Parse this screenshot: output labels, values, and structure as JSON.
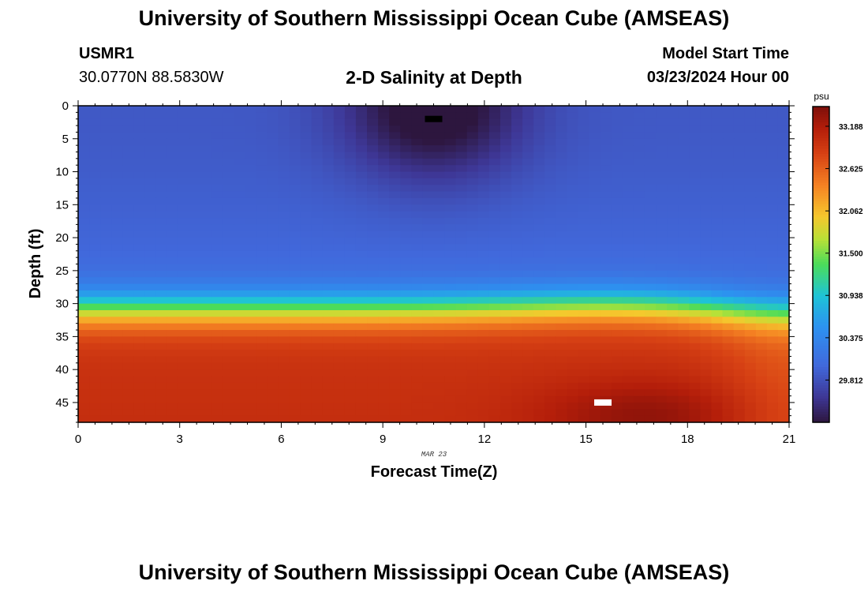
{
  "header": {
    "title": "University of Southern Mississippi Ocean Cube (AMSEAS)",
    "station_id": "USMR1",
    "coords": "30.0770N  88.5830W",
    "subtitle": "2-D Salinity at Depth",
    "model_start_label": "Model Start Time",
    "model_start_value": "03/23/2024 Hour 00"
  },
  "footer": {
    "title": "University of Southern Mississippi Ocean Cube (AMSEAS)"
  },
  "chart_data": {
    "type": "heatmap",
    "title": "2-D Salinity at Depth",
    "xlabel": "Forecast Time(Z)",
    "ylabel": "Depth (ft)",
    "date_label": "MAR 23",
    "xlim": [
      0,
      21
    ],
    "ylim": [
      0,
      48
    ],
    "x_ticks": [
      0,
      3,
      6,
      9,
      12,
      15,
      18,
      21
    ],
    "y_ticks": [
      0,
      5,
      10,
      15,
      20,
      25,
      30,
      35,
      40,
      45
    ],
    "colorbar": {
      "unit": "psu",
      "min": 29.25,
      "max": 33.45,
      "ticks": [
        "33.188",
        "32.625",
        "32.062",
        "31.500",
        "30.938",
        "30.375",
        "29.812"
      ]
    },
    "field_description": "Fresher water (~29.3-29.8 psu) near surface with minimum centered around 10.5Z at 0-12 ft; strong halocline near 27-33 ft; saltier water (~33.0-33.4 psu) below 35 ft with maximum near 16-17Z at 45-48 ft.",
    "min_marker": {
      "x": 10.5,
      "y": 2
    },
    "max_marker": {
      "x": 15.5,
      "y": 45
    }
  }
}
